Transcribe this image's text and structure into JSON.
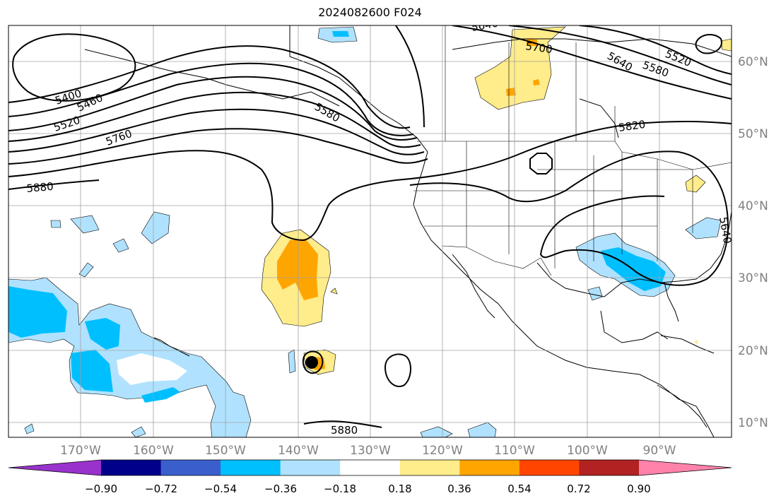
{
  "title": "2024082600 F024",
  "lon_labels": [
    "170°W",
    "160°W",
    "150°W",
    "140°W",
    "130°W",
    "120°W",
    "110°W",
    "100°W",
    "90°W"
  ],
  "lat_labels": [
    "60°N",
    "50°N",
    "40°N",
    "30°N",
    "20°N",
    "10°N"
  ],
  "contour_labels": [
    "5400",
    "5460",
    "5520",
    "5760",
    "5880",
    "5580",
    "5640",
    "5700",
    "5640",
    "5580",
    "5520",
    "5820",
    "5640",
    "5880"
  ],
  "colorbar": {
    "colors": [
      "#9932CC",
      "#00008B",
      "#3A5FCD",
      "#00BFFF",
      "#B0E2FF",
      "#FFFFFF",
      "#FFEC8B",
      "#FFA500",
      "#FF4500",
      "#B22222",
      "#FF82AB"
    ],
    "tick_labels": [
      "−0.90",
      "−0.72",
      "−0.54",
      "−0.36",
      "−0.18",
      "0.18",
      "0.36",
      "0.54",
      "0.72",
      "0.90"
    ]
  },
  "colors": {
    "shade_light_blue": "#B0E2FF",
    "shade_blue": "#00BFFF",
    "shade_yellow": "#FFEC8B",
    "shade_orange": "#FFA500",
    "axis_label": "#808080",
    "grid": "#A0A0A0"
  }
}
